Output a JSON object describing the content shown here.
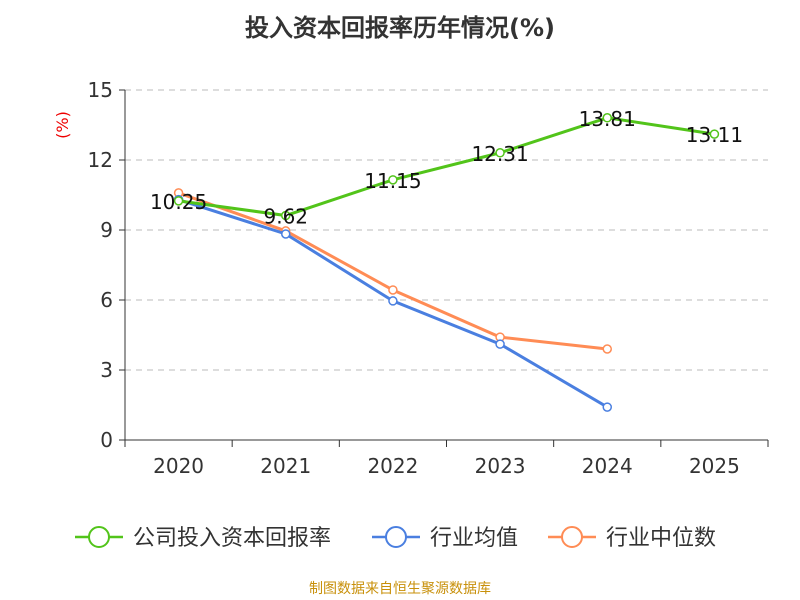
{
  "chart_data": {
    "type": "line",
    "title": "投入资本回报率历年情况(%)",
    "ylabel": "(%)",
    "xlabel": "",
    "ylim": [
      0,
      15
    ],
    "yticks": [
      0,
      3,
      6,
      9,
      12,
      15
    ],
    "categories": [
      "2020",
      "2021",
      "2022",
      "2023",
      "2024",
      "2025"
    ],
    "grid": true,
    "legend_position": "bottom",
    "series": [
      {
        "name": "公司投入资本回报率",
        "color": "#52c41a",
        "values": [
          10.25,
          9.62,
          11.15,
          12.31,
          13.81,
          13.11
        ],
        "labels": [
          "10.25",
          "9.62",
          "11.15",
          "12.31",
          "13.81",
          "13.11"
        ]
      },
      {
        "name": "行业均值",
        "color": "#4a7fe0",
        "values": [
          10.3,
          8.83,
          5.96,
          4.11,
          1.41,
          null
        ]
      },
      {
        "name": "行业中位数",
        "color": "#ff8c55",
        "values": [
          10.59,
          8.96,
          6.43,
          4.41,
          3.9,
          null
        ]
      }
    ]
  },
  "source": "制图数据来自恒生聚源数据库"
}
